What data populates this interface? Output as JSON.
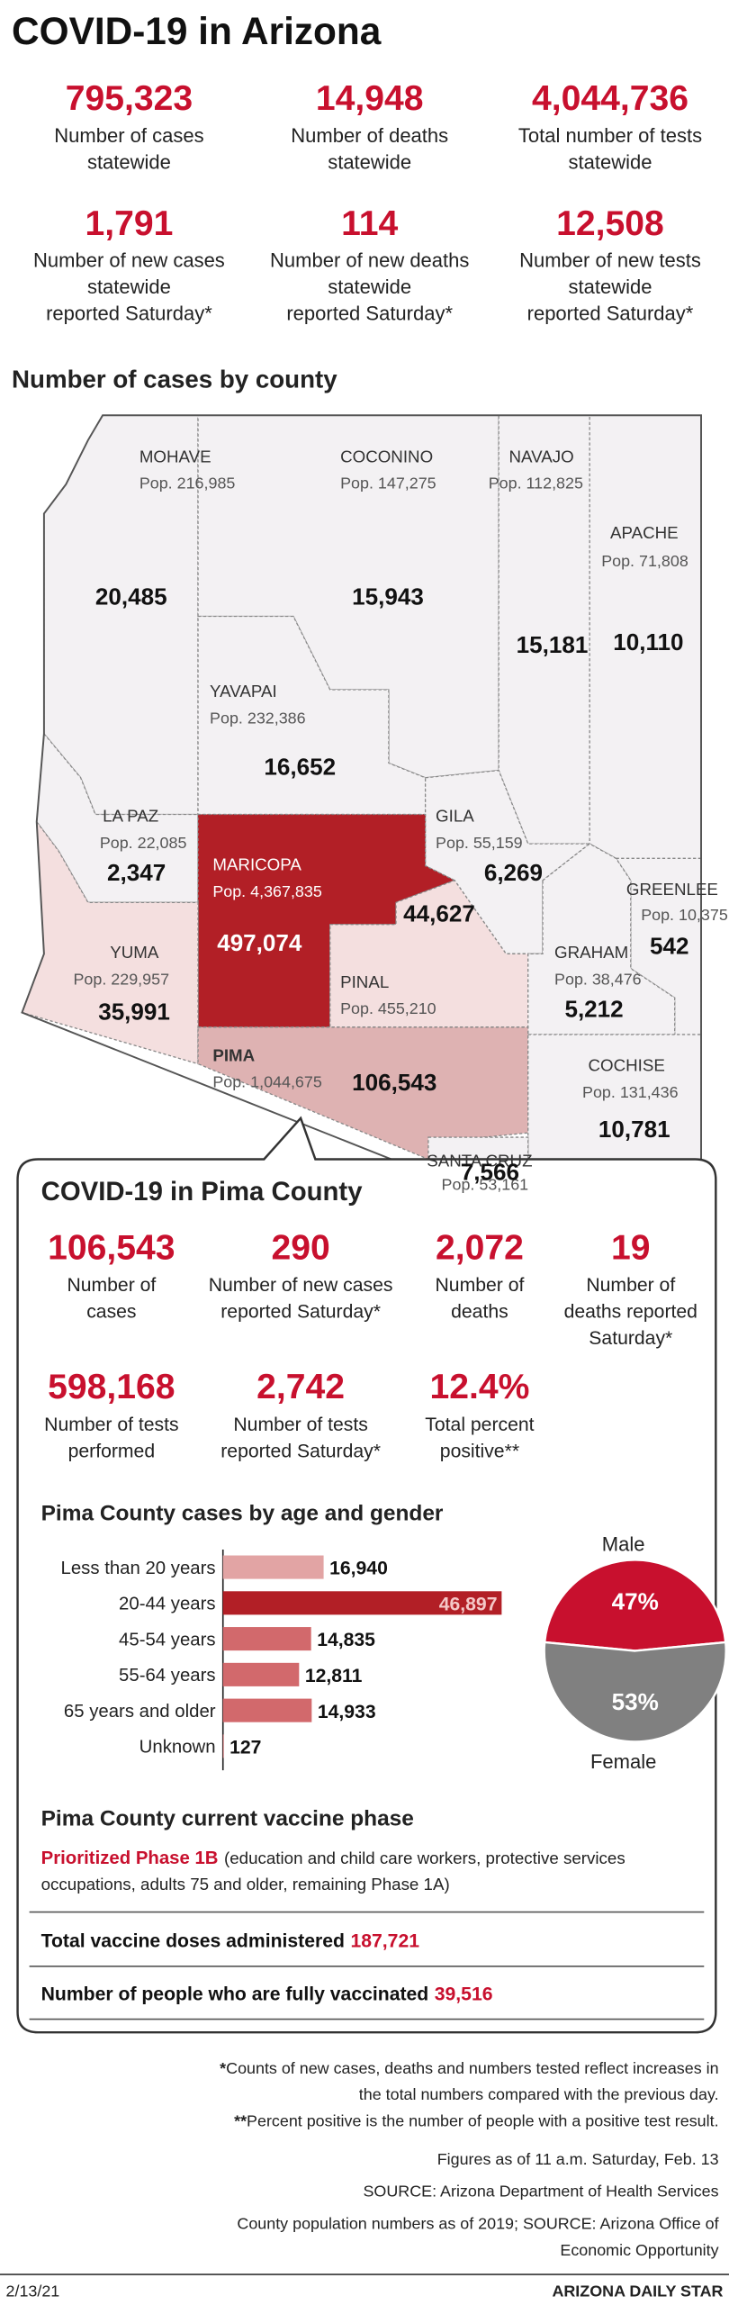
{
  "header": {
    "title": "COVID-19 in Arizona"
  },
  "state_stats": [
    {
      "value": "795,323",
      "label": [
        "Number of cases",
        "statewide"
      ]
    },
    {
      "value": "14,948",
      "label": [
        "Number of deaths",
        "statewide"
      ]
    },
    {
      "value": "4,044,736",
      "label": [
        "Total number of tests",
        "statewide"
      ]
    },
    {
      "value": "1,791",
      "label": [
        "Number of new cases",
        "statewide",
        "reported Saturday*"
      ]
    },
    {
      "value": "114",
      "label": [
        "Number of new deaths",
        "statewide",
        "reported Saturday*"
      ]
    },
    {
      "value": "12,508",
      "label": [
        "Number of new tests",
        "statewide",
        "reported Saturday*"
      ]
    }
  ],
  "map": {
    "title": "Number of cases by county",
    "counties": [
      {
        "name": "MOHAVE",
        "pop": "Pop. 216,985",
        "cases": "20,485",
        "color": "#f3f1f3"
      },
      {
        "name": "COCONINO",
        "pop": "Pop. 147,275",
        "cases": "15,943",
        "color": "#f3f1f3"
      },
      {
        "name": "NAVAJO",
        "pop": "Pop. 112,825",
        "cases": "15,181",
        "color": "#f3f1f3"
      },
      {
        "name": "APACHE",
        "pop": "Pop. 71,808",
        "cases": "10,110",
        "color": "#f3f1f3"
      },
      {
        "name": "YAVAPAI",
        "pop": "Pop. 232,386",
        "cases": "16,652",
        "color": "#f3f1f3"
      },
      {
        "name": "LA PAZ",
        "pop": "Pop. 22,085",
        "cases": "2,347",
        "color": "#f3f1f3"
      },
      {
        "name": "GILA",
        "pop": "Pop. 55,159",
        "cases": "6,269",
        "color": "#f3f1f3"
      },
      {
        "name": "GREENLEE",
        "pop": "Pop. 10,375",
        "cases": "542",
        "color": "#f3f1f3"
      },
      {
        "name": "MARICOPA",
        "pop": "Pop. 4,367,835",
        "cases": "497,074",
        "color": "#b21f26"
      },
      {
        "name": "YUMA",
        "pop": "Pop. 229,957",
        "cases": "35,991",
        "color": "#f4dfdf"
      },
      {
        "name": "PINAL",
        "pop": "Pop. 455,210",
        "cases": "44,627",
        "color": "#f4dfdf"
      },
      {
        "name": "GRAHAM",
        "pop": "Pop. 38,476",
        "cases": "5,212",
        "color": "#f3f1f3"
      },
      {
        "name": "PIMA",
        "pop": "Pop. 1,044,675",
        "cases": "106,543",
        "color": "#deb2b2"
      },
      {
        "name": "COCHISE",
        "pop": "Pop. 131,436",
        "cases": "10,781",
        "color": "#f3f1f3"
      },
      {
        "name": "SANTA CRUZ",
        "pop": "Pop. 53,161",
        "cases": "7,566",
        "color": "#f3f1f3"
      }
    ]
  },
  "pima": {
    "title": "COVID-19 in Pima County",
    "stats": [
      {
        "value": "106,543",
        "label": [
          "Number of",
          "cases"
        ]
      },
      {
        "value": "290",
        "label": [
          "Number of new cases",
          "reported Saturday*"
        ]
      },
      {
        "value": "2,072",
        "label": [
          "Number of",
          "deaths"
        ]
      },
      {
        "value": "19",
        "label": [
          "Number of",
          "deaths reported",
          "Saturday*"
        ]
      },
      {
        "value": "598,168",
        "label": [
          "Number of tests",
          "performed"
        ]
      },
      {
        "value": "2,742",
        "label": [
          "Number of tests",
          "reported Saturday*"
        ]
      },
      {
        "value": "12.4%",
        "label": [
          "Total percent",
          "positive**"
        ]
      }
    ]
  },
  "chart_data": [
    {
      "type": "bar",
      "title": "Pima County cases by age and gender",
      "categories": [
        "Less than 20 years",
        "20-44 years",
        "45-54 years",
        "55-64 years",
        "65 years and older",
        "Unknown"
      ],
      "values": [
        16940,
        46897,
        14835,
        12811,
        14933,
        127
      ],
      "value_labels": [
        "16,940",
        "46,897",
        "14,835",
        "12,811",
        "14,933",
        "127"
      ],
      "colors": [
        "#e2a4a4",
        "#b21f26",
        "#d2696c",
        "#d2696c",
        "#d2696c",
        "#d2696c"
      ]
    },
    {
      "type": "pie",
      "categories": [
        "Male",
        "Female"
      ],
      "values": [
        47,
        53
      ],
      "value_labels": [
        "47%",
        "53%"
      ],
      "colors": [
        "#c8102e",
        "#808080"
      ]
    }
  ],
  "vaccine": {
    "title": "Pima County current vaccine phase",
    "phase": "Prioritized Phase 1B",
    "note": [
      "(education and child care workers, protective services",
      "occupations, adults 75 and older, remaining Phase 1A)"
    ],
    "rows": [
      {
        "label": "Total vaccine doses administered",
        "value": "187,721"
      },
      {
        "label": "Number of people who are fully vaccinated",
        "value": "39,516"
      }
    ]
  },
  "footnotes": [
    {
      "mark": "*",
      "lines": [
        "Counts of new cases, deaths and numbers tested reflect increases in",
        "the total numbers compared with the previous day."
      ]
    },
    {
      "mark": "**",
      "lines": [
        "Percent positive is the number of people with a positive test result."
      ]
    }
  ],
  "notes": [
    "Figures as of 11 a.m. Saturday, Feb. 13",
    "SOURCE: Arizona Department of Health Services",
    "County population numbers as of 2019; SOURCE: Arizona Office of",
    "Economic Opportunity"
  ],
  "footer": {
    "date": "2/13/21",
    "source": "ARIZONA DAILY STAR"
  }
}
